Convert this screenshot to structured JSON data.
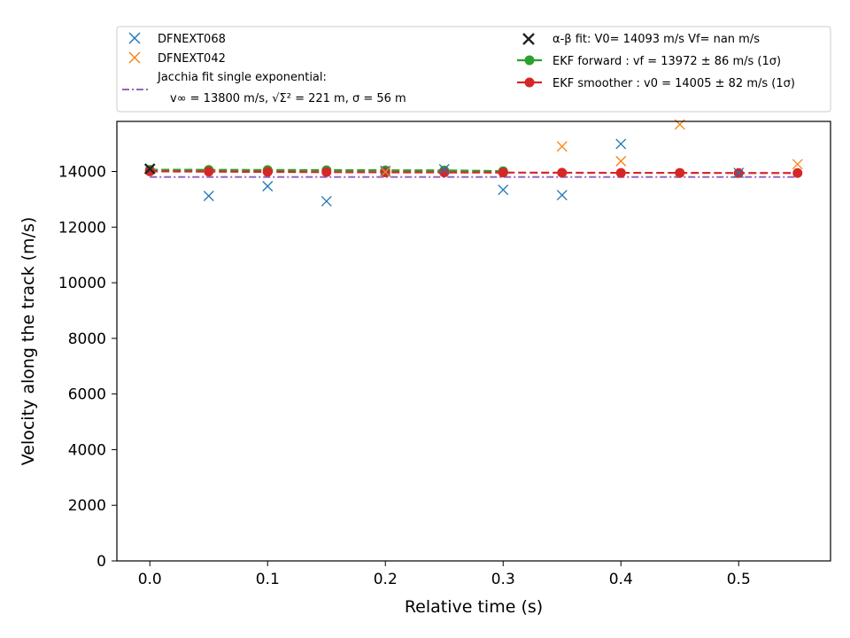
{
  "chart_data": {
    "type": "scatter",
    "xlabel": "Relative time (s)",
    "ylabel": "Velocity along the track (m/s)",
    "xlim": [
      -0.028,
      0.578
    ],
    "ylim": [
      0,
      15800
    ],
    "xticks": [
      0.0,
      0.1,
      0.2,
      0.3,
      0.4,
      0.5
    ],
    "xtick_labels": [
      "0.0",
      "0.1",
      "0.2",
      "0.3",
      "0.4",
      "0.5"
    ],
    "yticks": [
      0,
      2000,
      4000,
      6000,
      8000,
      10000,
      12000,
      14000
    ],
    "ytick_labels": [
      "0",
      "2000",
      "4000",
      "6000",
      "8000",
      "10000",
      "12000",
      "14000"
    ],
    "legend_position": "above plot",
    "series": [
      {
        "name": "DFNEXT068",
        "marker": "x",
        "color": "#1f77b4",
        "x": [
          0.05,
          0.1,
          0.15,
          0.2,
          0.25,
          0.3,
          0.35,
          0.4,
          0.5
        ],
        "y": [
          13120,
          13470,
          12930,
          14020,
          14080,
          13340,
          13150,
          14990,
          13950
        ]
      },
      {
        "name": "DFNEXT042",
        "marker": "x",
        "color": "#ff7f0e",
        "x": [
          0.2,
          0.35,
          0.4,
          0.45,
          0.55
        ],
        "y": [
          13980,
          14900,
          14370,
          15690,
          14260
        ]
      },
      {
        "name_lines": [
          "Jacchia fit single exponential:",
          "v∞ = 13800 m/s, √Σ² = 221 m, σ = 56 m"
        ],
        "style": "dashdot",
        "color": "#9467bd",
        "x": [
          0.0,
          0.55
        ],
        "y": [
          13800,
          13800
        ]
      },
      {
        "name": "α-β fit: V0= 14093 m/s   Vf= nan m/s",
        "marker": "x",
        "color": "#222222",
        "x": [
          0.0
        ],
        "y": [
          14093
        ]
      },
      {
        "name": "EKF forward : vf =  13972 ± 86 m/s (1σ)",
        "style": "dashed-with-circles",
        "color": "#2ca02c",
        "x": [
          0.0,
          0.05,
          0.1,
          0.15,
          0.2,
          0.25,
          0.3
        ],
        "y": [
          14060,
          14055,
          14050,
          14045,
          14040,
          14035,
          14010
        ]
      },
      {
        "name": "EKF smoother : v0 =  14005 ± 82 m/s (1σ)",
        "style": "dashed-with-circles",
        "color": "#d62728",
        "x": [
          0.0,
          0.05,
          0.1,
          0.15,
          0.2,
          0.25,
          0.3,
          0.35,
          0.4,
          0.45,
          0.5,
          0.55
        ],
        "y": [
          14005,
          13995,
          13985,
          13975,
          13970,
          13965,
          13960,
          13955,
          13950,
          13950,
          13945,
          13945
        ]
      }
    ]
  }
}
